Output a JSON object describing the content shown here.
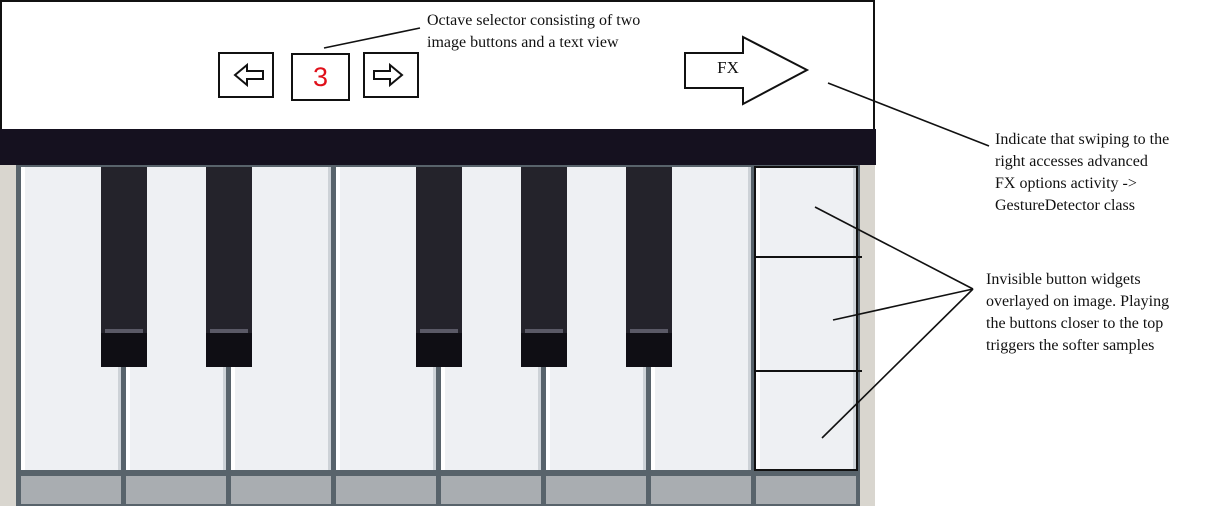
{
  "toolbar": {
    "octave_value": "3",
    "octave_down_icon": "left-arrow-icon",
    "octave_up_icon": "right-arrow-icon",
    "fx_label": "FX",
    "fx_icon": "right-arrow-icon"
  },
  "keyboard": {
    "white_keys": 8,
    "black_keys": 5,
    "velocity_zones": [
      "top-zone",
      "middle-zone",
      "bottom-zone"
    ]
  },
  "annotations": {
    "octave_note": "Octave selector consisting of two\nimage buttons and a text view",
    "fx_note": "Indicate that swiping to the\nright accesses advanced\nFX options activity ->\nGestureDetector class",
    "velocity_note": "Invisible button widgets\noverlayed on image. Playing\nthe buttons closer to the top\ntriggers the softer samples"
  },
  "colors": {
    "octave_value": "#e0101a",
    "dark_band": "#15111f",
    "white_key": "#eef0f3",
    "black_key": "#24232b"
  }
}
